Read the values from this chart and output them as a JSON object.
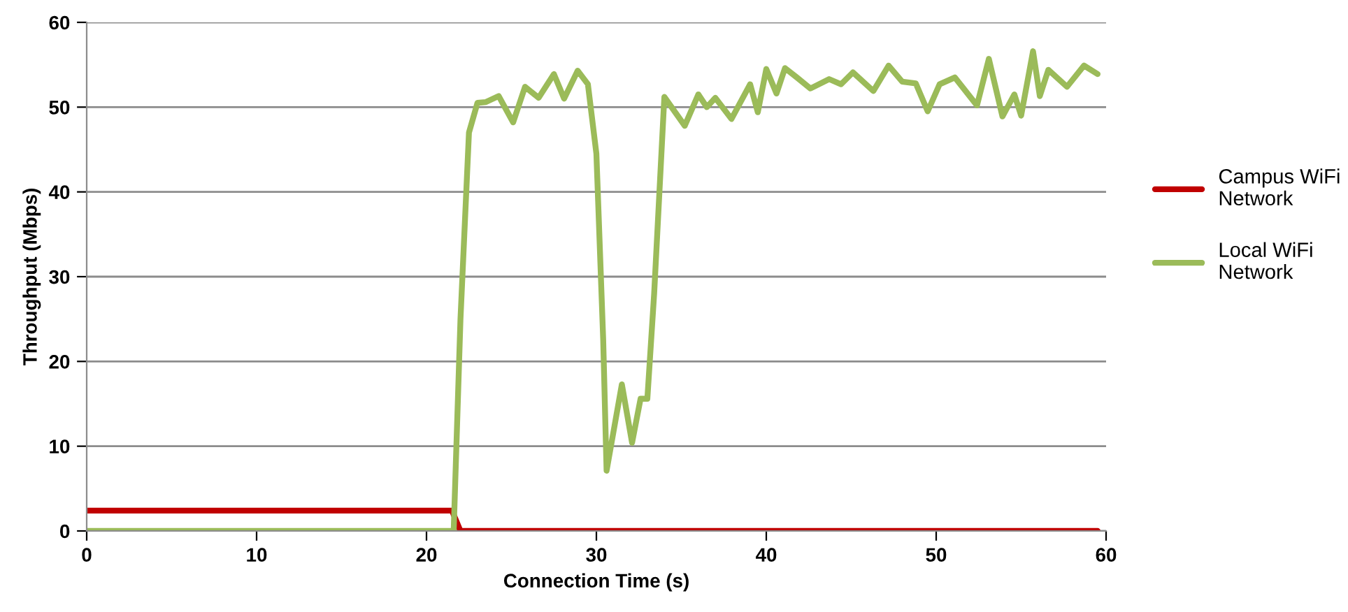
{
  "chart_data": {
    "type": "line",
    "xlabel": "Connection Time (s)",
    "ylabel": "Throughput (Mbps)",
    "xlim": [
      0,
      60
    ],
    "ylim": [
      0,
      60
    ],
    "xticks": [
      0,
      10,
      20,
      30,
      40,
      50,
      60
    ],
    "yticks": [
      0,
      10,
      20,
      30,
      40,
      50,
      60
    ],
    "grid": "y",
    "legend": "right",
    "marker": "none",
    "line_style": "solid",
    "series": [
      {
        "name": "Campus WiFi Network",
        "color": "#c00000",
        "x": [
          0,
          5,
          10,
          15,
          21.5,
          22,
          23,
          30,
          40,
          50,
          59.5
        ],
        "values": [
          2.4,
          2.4,
          2.4,
          2.4,
          2.4,
          0,
          0,
          0,
          0,
          0,
          0
        ]
      },
      {
        "name": "Local WiFi Network",
        "color": "#9bbb59",
        "x": [
          0,
          10,
          21.6,
          22.0,
          22.5,
          23.0,
          23.5,
          24.25,
          25.1,
          25.8,
          26.6,
          27.5,
          28.1,
          28.9,
          29.5,
          30.0,
          30.4,
          30.6,
          31.5,
          32.1,
          32.6,
          33.0,
          33.4,
          34.0,
          35.2,
          36.0,
          36.5,
          37.0,
          37.95,
          39.05,
          39.5,
          40.0,
          40.6,
          41.1,
          41.8,
          42.6,
          43.7,
          44.4,
          45.1,
          46.3,
          47.2,
          48.0,
          48.8,
          49.5,
          50.2,
          51.1,
          52.4,
          53.1,
          53.9,
          54.6,
          55.0,
          55.7,
          56.1,
          56.6,
          57.7,
          58.7,
          59.5
        ],
        "values": [
          0,
          0,
          0,
          25,
          47,
          50.5,
          50.6,
          51.3,
          48.2,
          52.4,
          51.1,
          53.9,
          51.0,
          54.3,
          52.7,
          44.5,
          22.6,
          7.1,
          17.3,
          10.4,
          15.6,
          15.6,
          28.0,
          51.2,
          47.8,
          51.5,
          50.0,
          51.1,
          48.6,
          52.7,
          49.4,
          54.5,
          51.6,
          54.6,
          53.5,
          52.2,
          53.3,
          52.7,
          54.1,
          51.9,
          54.9,
          53.0,
          52.8,
          49.5,
          52.7,
          53.5,
          50.2,
          55.7,
          48.9,
          51.5,
          49.0,
          56.6,
          51.3,
          54.4,
          52.4,
          54.9,
          53.9
        ]
      }
    ]
  }
}
